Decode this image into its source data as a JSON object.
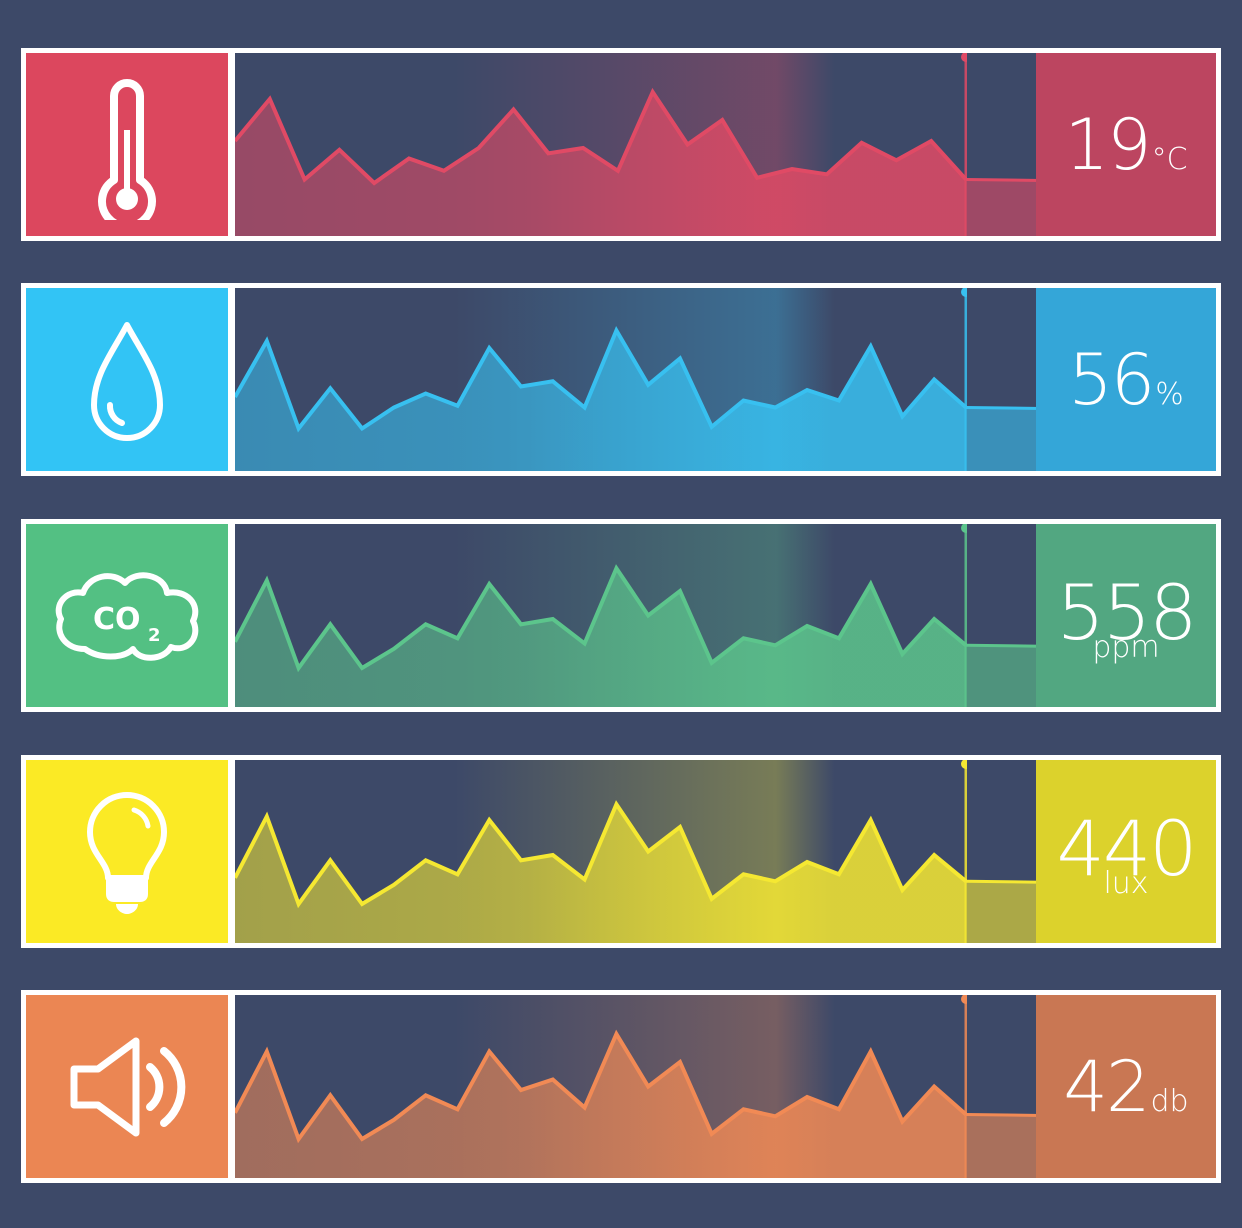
{
  "sensors": [
    {
      "id": "temperature",
      "icon": "thermometer-icon",
      "value": "19",
      "unit": "°C",
      "unit_layout": "inline",
      "color_icon": "#dc475e",
      "color_value": "#bc4560",
      "color_line": "#e04a65",
      "series": [
        52,
        76,
        30,
        47,
        28,
        42,
        35,
        48,
        70,
        45,
        48,
        35,
        80,
        50,
        64,
        31,
        36,
        33,
        51,
        41,
        52,
        30
      ]
    },
    {
      "id": "humidity",
      "icon": "water-drop-icon",
      "value": "56",
      "unit": "%",
      "unit_layout": "inline",
      "color_icon": "#32c4f5",
      "color_value": "#34a6d8",
      "color_line": "#38c0f0",
      "series": [
        40,
        72,
        22,
        45,
        22,
        34,
        42,
        35,
        68,
        46,
        49,
        34,
        78,
        47,
        62,
        23,
        38,
        34,
        44,
        38,
        69,
        29,
        50,
        34
      ]
    },
    {
      "id": "co2",
      "icon": "co2-cloud-icon",
      "value": "558",
      "unit": "ppm",
      "unit_layout": "stacked",
      "color_icon": "#53c083",
      "color_value": "#52a781",
      "color_line": "#5cc58c",
      "series": [
        35,
        70,
        20,
        45,
        20,
        31,
        45,
        37,
        68,
        45,
        48,
        34,
        77,
        50,
        64,
        23,
        37,
        33,
        44,
        37,
        68,
        28,
        48,
        33
      ]
    },
    {
      "id": "light",
      "icon": "light-bulb-icon",
      "value": "440",
      "unit": "lux",
      "unit_layout": "stacked",
      "color_icon": "#fbea25",
      "color_value": "#dcd22c",
      "color_line": "#f5e832",
      "series": [
        35,
        70,
        20,
        45,
        20,
        31,
        45,
        37,
        68,
        45,
        48,
        34,
        77,
        50,
        64,
        23,
        37,
        33,
        44,
        37,
        68,
        28,
        48,
        33
      ]
    },
    {
      "id": "sound",
      "icon": "speaker-icon",
      "value": "42",
      "unit": "db",
      "unit_layout": "inline",
      "color_icon": "#eb8653",
      "color_value": "#c97753",
      "color_line": "#f18a55",
      "series": [
        35,
        70,
        20,
        45,
        20,
        31,
        45,
        37,
        70,
        48,
        54,
        38,
        80,
        50,
        64,
        23,
        37,
        33,
        44,
        37,
        70,
        30,
        50,
        34
      ]
    }
  ],
  "chart_data": [
    {
      "type": "area",
      "x": [
        1,
        2,
        3,
        4,
        5,
        6,
        7,
        8,
        9,
        10,
        11,
        12,
        13,
        14,
        15,
        16,
        17,
        18,
        19,
        20,
        21,
        22
      ],
      "series": [
        {
          "values": [
            52,
            76,
            30,
            47,
            28,
            42,
            35,
            48,
            70,
            45,
            48,
            35,
            80,
            50,
            64,
            31,
            36,
            33,
            51,
            41,
            52,
            30
          ]
        }
      ],
      "ylim": [
        0,
        100
      ]
    },
    {
      "type": "area",
      "x": [
        1,
        2,
        3,
        4,
        5,
        6,
        7,
        8,
        9,
        10,
        11,
        12,
        13,
        14,
        15,
        16,
        17,
        18,
        19,
        20,
        21,
        22,
        23,
        24
      ],
      "series": [
        {
          "values": [
            40,
            72,
            22,
            45,
            22,
            34,
            42,
            35,
            68,
            46,
            49,
            34,
            78,
            47,
            62,
            23,
            38,
            34,
            44,
            38,
            69,
            29,
            50,
            34
          ]
        }
      ],
      "ylim": [
        0,
        100
      ]
    },
    {
      "type": "area",
      "x": [
        1,
        2,
        3,
        4,
        5,
        6,
        7,
        8,
        9,
        10,
        11,
        12,
        13,
        14,
        15,
        16,
        17,
        18,
        19,
        20,
        21,
        22,
        23,
        24
      ],
      "series": [
        {
          "values": [
            35,
            70,
            20,
            45,
            20,
            31,
            45,
            37,
            68,
            45,
            48,
            34,
            77,
            50,
            64,
            23,
            37,
            33,
            44,
            37,
            68,
            28,
            48,
            33
          ]
        }
      ],
      "ylim": [
        0,
        100
      ]
    },
    {
      "type": "area",
      "x": [
        1,
        2,
        3,
        4,
        5,
        6,
        7,
        8,
        9,
        10,
        11,
        12,
        13,
        14,
        15,
        16,
        17,
        18,
        19,
        20,
        21,
        22,
        23,
        24
      ],
      "series": [
        {
          "values": [
            35,
            70,
            20,
            45,
            20,
            31,
            45,
            37,
            68,
            45,
            48,
            34,
            77,
            50,
            64,
            23,
            37,
            33,
            44,
            37,
            68,
            28,
            48,
            33
          ]
        }
      ],
      "ylim": [
        0,
        100
      ]
    },
    {
      "type": "area",
      "x": [
        1,
        2,
        3,
        4,
        5,
        6,
        7,
        8,
        9,
        10,
        11,
        12,
        13,
        14,
        15,
        16,
        17,
        18,
        19,
        20,
        21,
        22,
        23,
        24
      ],
      "series": [
        {
          "values": [
            35,
            70,
            20,
            45,
            20,
            31,
            45,
            37,
            70,
            48,
            54,
            38,
            80,
            50,
            64,
            23,
            37,
            33,
            44,
            37,
            70,
            30,
            50,
            34
          ]
        }
      ],
      "ylim": [
        0,
        100
      ]
    }
  ]
}
